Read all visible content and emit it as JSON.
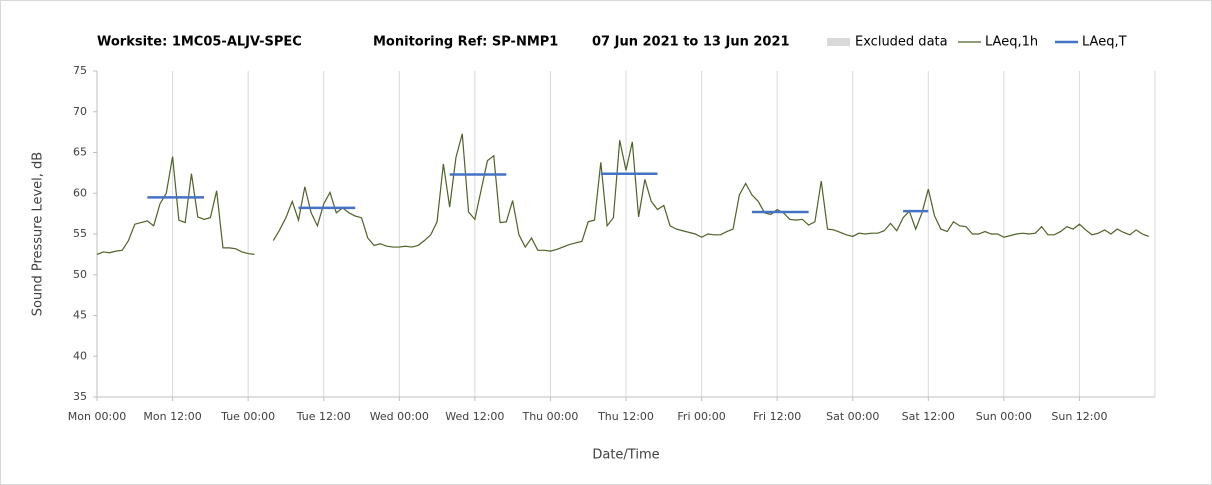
{
  "chart_data": {
    "type": "line",
    "title_parts": [
      "Worksite: 1MC05-ALJV-SPEC",
      "Monitoring Ref: SP-NMP1",
      "07 Jun 2021 to 13 Jun 2021"
    ],
    "x_label": "Date/Time",
    "y_label": "Sound Pressure Level, dB",
    "legend": "top-right",
    "grid": "x",
    "excluded_label": "Excluded data",
    "excluded_color": "#d9d9d9",
    "categories": [
      "Mon 00:00",
      null,
      null,
      null,
      null,
      null,
      null,
      null,
      null,
      null,
      null,
      null,
      "Mon 12:00",
      null,
      null,
      null,
      null,
      null,
      null,
      null,
      null,
      null,
      null,
      null,
      "Tue 00:00",
      null,
      null,
      null,
      null,
      null,
      null,
      null,
      null,
      null,
      null,
      null,
      "Tue 12:00",
      null,
      null,
      null,
      null,
      null,
      null,
      null,
      null,
      null,
      null,
      null,
      "Wed 00:00",
      null,
      null,
      null,
      null,
      null,
      null,
      null,
      null,
      null,
      null,
      null,
      "Wed 12:00",
      null,
      null,
      null,
      null,
      null,
      null,
      null,
      null,
      null,
      null,
      null,
      "Thu 00:00",
      null,
      null,
      null,
      null,
      null,
      null,
      null,
      null,
      null,
      null,
      null,
      "Thu 12:00",
      null,
      null,
      null,
      null,
      null,
      null,
      null,
      null,
      null,
      null,
      null,
      "Fri 00:00",
      null,
      null,
      null,
      null,
      null,
      null,
      null,
      null,
      null,
      null,
      null,
      "Fri 12:00",
      null,
      null,
      null,
      null,
      null,
      null,
      null,
      null,
      null,
      null,
      null,
      "Sat 00:00",
      null,
      null,
      null,
      null,
      null,
      null,
      null,
      null,
      null,
      null,
      null,
      "Sat 12:00",
      null,
      null,
      null,
      null,
      null,
      null,
      null,
      null,
      null,
      null,
      null,
      "Sun 00:00",
      null,
      null,
      null,
      null,
      null,
      null,
      null,
      null,
      null,
      null,
      null,
      "Sun 12:00",
      null,
      null,
      null,
      null,
      null,
      null,
      null,
      null,
      null,
      null,
      null
    ],
    "series": [
      {
        "name": "LAeq,1h",
        "color": "#4f6228",
        "width": 1.2,
        "values": [
          52.5,
          52.8,
          52.7,
          52.9,
          53.0,
          54.2,
          56.2,
          56.4,
          56.6,
          56.0,
          58.7,
          60.0,
          64.5,
          56.7,
          56.4,
          62.4,
          57.1,
          56.8,
          57.0,
          60.3,
          53.3,
          53.3,
          53.2,
          52.8,
          52.6,
          52.5,
          null,
          null,
          54.2,
          55.5,
          57.0,
          59.0,
          56.7,
          60.8,
          57.6,
          56.0,
          58.7,
          60.1,
          57.6,
          58.2,
          57.6,
          57.2,
          57.0,
          54.5,
          53.6,
          53.8,
          53.5,
          53.4,
          53.4,
          53.5,
          53.4,
          53.6,
          54.2,
          54.9,
          56.5,
          63.6,
          58.3,
          64.4,
          67.3,
          57.7,
          56.8,
          60.4,
          64.0,
          64.6,
          56.4,
          56.5,
          59.1,
          54.9,
          53.4,
          54.5,
          53.0,
          53.0,
          52.9,
          53.1,
          53.4,
          53.7,
          53.9,
          54.1,
          56.5,
          56.7,
          63.8,
          56.0,
          57.0,
          66.5,
          62.8,
          66.3,
          57.1,
          61.7,
          59.0,
          58.0,
          58.5,
          56.0,
          55.6,
          55.4,
          55.2,
          55.0,
          54.6,
          55.0,
          54.9,
          54.9,
          55.3,
          55.6,
          59.8,
          61.2,
          59.8,
          59.0,
          57.6,
          57.4,
          58.0,
          57.6,
          56.8,
          56.7,
          56.8,
          56.1,
          56.5,
          61.5,
          55.6,
          55.5,
          55.2,
          54.9,
          54.7,
          55.1,
          55.0,
          55.1,
          55.1,
          55.4,
          56.3,
          55.4,
          57.0,
          57.8,
          55.6,
          57.6,
          60.5,
          57.2,
          55.6,
          55.3,
          56.5,
          56.0,
          55.9,
          55.0,
          55.0,
          55.3,
          55.0,
          55.0,
          54.6,
          54.8,
          55.0,
          55.1,
          55.0,
          55.1,
          55.9,
          54.9,
          54.9,
          55.3,
          55.9,
          55.6,
          56.2,
          55.5,
          54.9,
          55.1,
          55.5,
          55.0,
          55.6,
          55.2,
          54.9,
          55.5,
          55.0,
          54.7
        ]
      },
      {
        "name": "LAeq,T",
        "color": "#4472c4",
        "width": 2.5,
        "values": [
          null,
          null,
          null,
          null,
          null,
          null,
          null,
          null,
          59.5,
          59.5,
          59.5,
          59.5,
          59.5,
          59.5,
          59.5,
          59.5,
          59.5,
          59.5,
          null,
          null,
          null,
          null,
          null,
          null,
          null,
          null,
          null,
          null,
          null,
          null,
          null,
          null,
          58.2,
          58.2,
          58.2,
          58.2,
          58.2,
          58.2,
          58.2,
          58.2,
          58.2,
          58.2,
          null,
          null,
          null,
          null,
          null,
          null,
          null,
          null,
          null,
          null,
          null,
          null,
          null,
          null,
          62.3,
          62.3,
          62.3,
          62.3,
          62.3,
          62.3,
          62.3,
          62.3,
          62.3,
          62.3,
          null,
          null,
          null,
          null,
          null,
          null,
          null,
          null,
          null,
          null,
          null,
          null,
          null,
          null,
          62.4,
          62.4,
          62.4,
          62.4,
          62.4,
          62.4,
          62.4,
          62.4,
          62.4,
          62.4,
          null,
          null,
          null,
          null,
          null,
          null,
          null,
          null,
          null,
          null,
          null,
          null,
          null,
          null,
          57.7,
          57.7,
          57.7,
          57.7,
          57.7,
          57.7,
          57.7,
          57.7,
          57.7,
          57.7,
          null,
          null,
          null,
          null,
          null,
          null,
          null,
          null,
          null,
          null,
          null,
          null,
          null,
          null,
          57.8,
          57.8,
          57.8,
          57.8,
          57.8,
          null,
          null,
          null,
          null,
          null,
          null,
          null,
          null,
          null,
          null,
          null,
          null,
          null,
          null,
          null,
          null,
          null,
          null,
          null,
          null,
          null,
          null,
          null,
          null,
          null,
          null,
          null,
          null,
          null,
          null,
          null,
          null,
          null,
          null,
          null
        ]
      }
    ],
    "ylim": [
      35,
      75
    ],
    "yticks": [
      35,
      40,
      45,
      50,
      55,
      60,
      65,
      70,
      75
    ]
  }
}
